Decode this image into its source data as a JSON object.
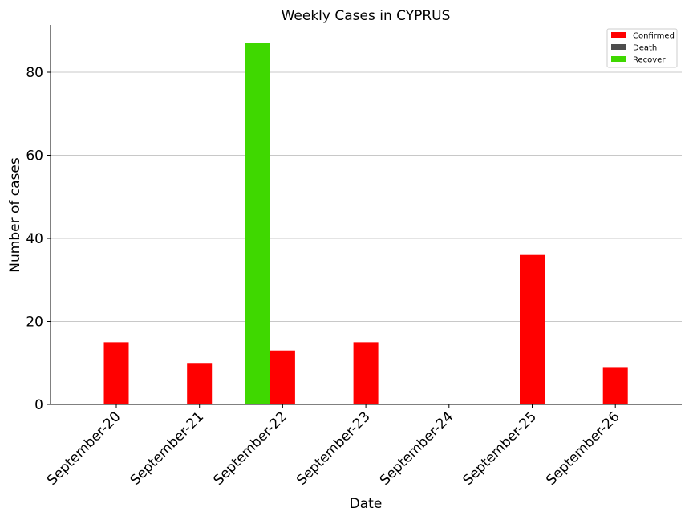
{
  "chart_data": {
    "type": "bar",
    "title": "Weekly Cases in CYPRUS",
    "xlabel": "Date",
    "ylabel": "Number of cases",
    "categories": [
      "September-20",
      "September-21",
      "September-22",
      "September-23",
      "September-24",
      "September-25",
      "September-26"
    ],
    "series": [
      {
        "name": "Confirmed",
        "color": "#ff0000",
        "values": [
          15,
          10,
          13,
          15,
          0,
          36,
          9
        ]
      },
      {
        "name": "Death",
        "color": "#4d4d4d",
        "values": [
          0,
          0,
          0,
          0,
          0,
          0,
          0
        ]
      },
      {
        "name": "Recover",
        "color": "#3fd800",
        "values": [
          0,
          0,
          87,
          0,
          0,
          0,
          0
        ]
      }
    ],
    "yticks": [
      0,
      20,
      40,
      60,
      80
    ],
    "ylim": [
      0,
      91.4
    ],
    "grid": "y",
    "legend_position": "top-right"
  }
}
